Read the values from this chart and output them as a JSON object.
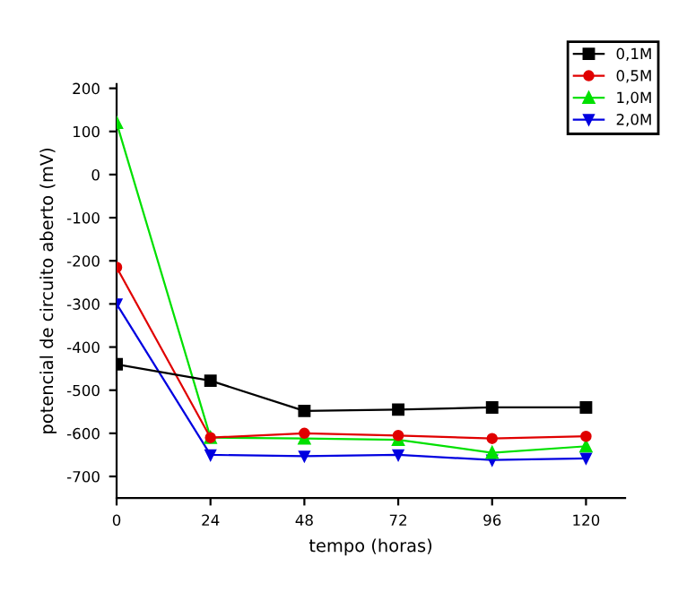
{
  "chart_data": {
    "type": "line",
    "xlabel": "tempo (horas)",
    "ylabel": "potencial de circuito aberto (mV)",
    "x": [
      0,
      24,
      48,
      72,
      96,
      120
    ],
    "series": [
      {
        "name": "0,1M",
        "color": "#000000",
        "marker": "square",
        "values": [
          -440,
          -478,
          -548,
          -545,
          -540,
          -540
        ]
      },
      {
        "name": "0,5M",
        "color": "#e00000",
        "marker": "circle",
        "values": [
          -215,
          -610,
          -600,
          -605,
          -612,
          -607
        ]
      },
      {
        "name": "1,0M",
        "color": "#00e000",
        "marker": "triangle",
        "values": [
          120,
          -610,
          -612,
          -615,
          -645,
          -630
        ]
      },
      {
        "name": "2,0M",
        "color": "#0000e0",
        "marker": "triangle_down",
        "values": [
          -300,
          -650,
          -653,
          -650,
          -662,
          -658
        ]
      }
    ],
    "xlim": [
      0,
      130
    ],
    "xticks": [
      0,
      24,
      48,
      72,
      96,
      120
    ],
    "ylim": [
      -750,
      210
    ],
    "yticks": [
      -700,
      -600,
      -500,
      -400,
      -300,
      -200,
      -100,
      0,
      100,
      200
    ],
    "grid": false,
    "legend": "top right"
  }
}
